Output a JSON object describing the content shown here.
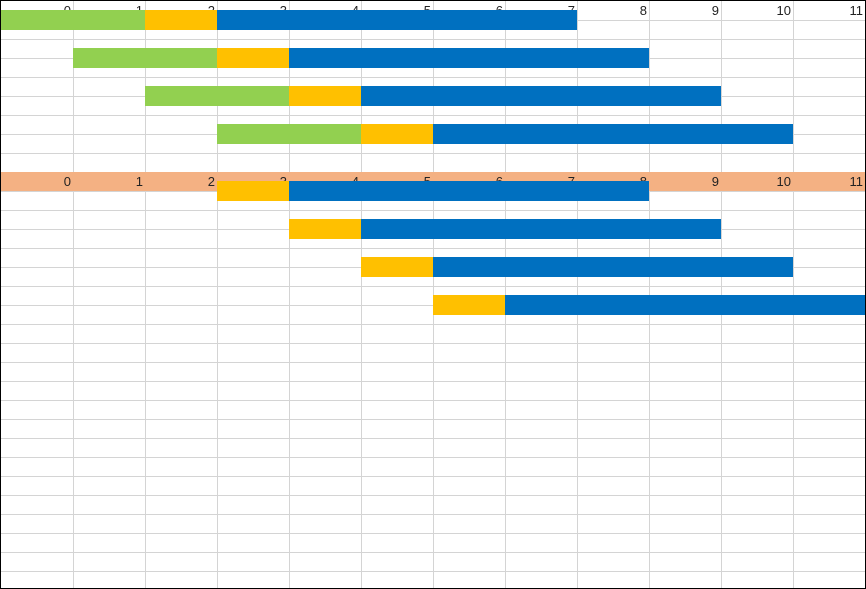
{
  "colors": {
    "wait": "#92D050",
    "short": "#FFC000",
    "long": "#0070C0",
    "header2_band": "#F4B183",
    "gridline": "#D4D4D4"
  },
  "scale": {
    "min": 0,
    "max": 11
  },
  "headers": [
    {
      "labels": [
        "0",
        "1",
        "2",
        "3",
        "4",
        "5",
        "6",
        "7",
        "8",
        "9",
        "10",
        "11"
      ]
    },
    {
      "labels": [
        "0",
        "1",
        "2",
        "3",
        "4",
        "5",
        "6",
        "7",
        "8",
        "9",
        "10",
        "11"
      ]
    }
  ],
  "sections": [
    {
      "rows": [
        [
          {
            "start": 0,
            "end": 2,
            "kind": "wait"
          },
          {
            "start": 2,
            "end": 3,
            "kind": "short"
          },
          {
            "start": 3,
            "end": 8,
            "kind": "long"
          }
        ],
        [
          {
            "start": 1,
            "end": 3,
            "kind": "wait"
          },
          {
            "start": 3,
            "end": 4,
            "kind": "short"
          },
          {
            "start": 4,
            "end": 9,
            "kind": "long"
          }
        ],
        [
          {
            "start": 2,
            "end": 4,
            "kind": "wait"
          },
          {
            "start": 4,
            "end": 5,
            "kind": "short"
          },
          {
            "start": 5,
            "end": 10,
            "kind": "long"
          }
        ],
        [
          {
            "start": 3,
            "end": 5,
            "kind": "wait"
          },
          {
            "start": 5,
            "end": 6,
            "kind": "short"
          },
          {
            "start": 6,
            "end": 11,
            "kind": "long"
          }
        ]
      ]
    },
    {
      "rows": [
        [
          {
            "start": 3,
            "end": 4,
            "kind": "short"
          },
          {
            "start": 4,
            "end": 9,
            "kind": "long"
          }
        ],
        [
          {
            "start": 4,
            "end": 5,
            "kind": "short"
          },
          {
            "start": 5,
            "end": 10,
            "kind": "long"
          }
        ],
        [
          {
            "start": 5,
            "end": 6,
            "kind": "short"
          },
          {
            "start": 6,
            "end": 11,
            "kind": "long"
          }
        ],
        [
          {
            "start": 6,
            "end": 7,
            "kind": "short"
          },
          {
            "start": 7,
            "end": 12,
            "kind": "long"
          }
        ]
      ]
    }
  ]
}
